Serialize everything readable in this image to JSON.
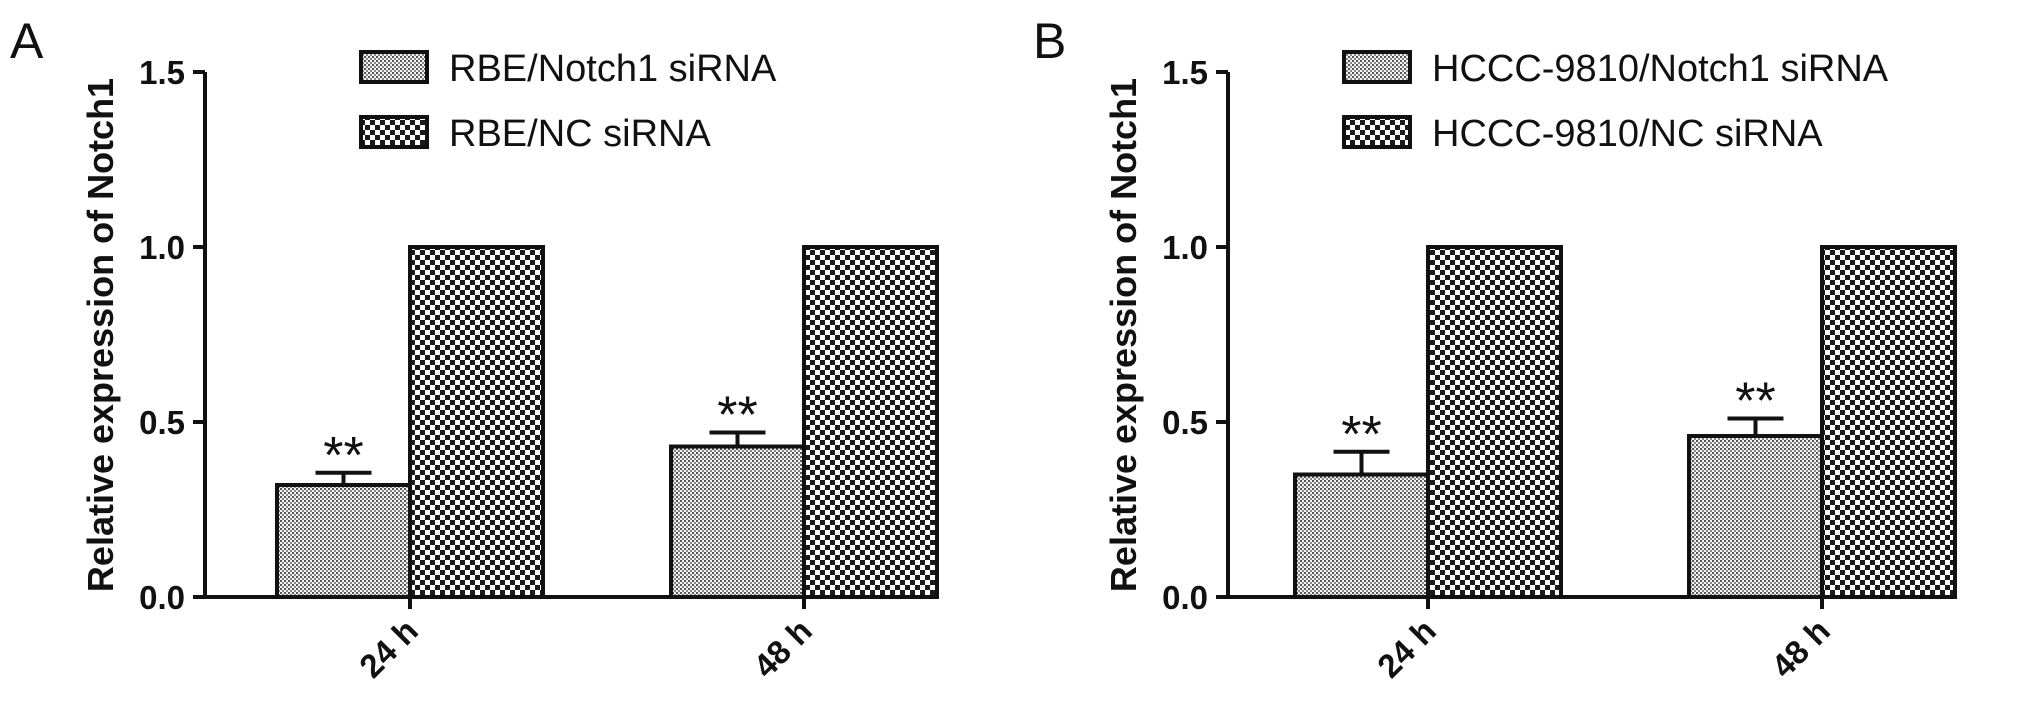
{
  "chart_data": [
    {
      "panel": "A",
      "type": "bar",
      "ylabel": "Relative expression of Notch1",
      "ylim": [
        0,
        1.5
      ],
      "yticks": [
        "0.0",
        "0.5",
        "1.0",
        "1.5"
      ],
      "categories": [
        "24 h",
        "48 h"
      ],
      "series": [
        {
          "name": "RBE/Notch1 siRNA",
          "pattern": "fine-dots",
          "values": [
            0.32,
            0.43
          ],
          "errors": [
            0.035,
            0.04
          ],
          "significance": [
            "**",
            "**"
          ]
        },
        {
          "name": "RBE/NC siRNA",
          "pattern": "checker",
          "values": [
            1.0,
            1.0
          ],
          "errors": [
            0,
            0
          ],
          "significance": [
            "",
            ""
          ]
        }
      ],
      "legend_position": "top-center",
      "grid": false
    },
    {
      "panel": "B",
      "type": "bar",
      "ylabel": "Relative expression of Notch1",
      "ylim": [
        0,
        1.5
      ],
      "yticks": [
        "0.0",
        "0.5",
        "1.0",
        "1.5"
      ],
      "categories": [
        "24 h",
        "48 h"
      ],
      "series": [
        {
          "name": "HCCC-9810/Notch1 siRNA",
          "pattern": "fine-dots",
          "values": [
            0.35,
            0.46
          ],
          "errors": [
            0.065,
            0.05
          ],
          "significance": [
            "**",
            "**"
          ]
        },
        {
          "name": "HCCC-9810/NC siRNA",
          "pattern": "checker",
          "values": [
            1.0,
            1.0
          ],
          "errors": [
            0,
            0
          ],
          "significance": [
            "",
            ""
          ]
        }
      ],
      "legend_position": "top-center",
      "grid": false
    }
  ]
}
